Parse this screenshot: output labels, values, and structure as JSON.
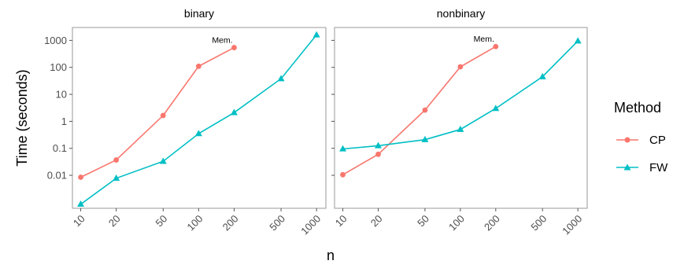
{
  "chart_data": {
    "type": "line",
    "ylabel": "Time (seconds)",
    "xlabel": "n",
    "x_scale": "log10",
    "y_scale": "log10",
    "x_ticks": [
      10,
      20,
      50,
      100,
      200,
      500,
      1000
    ],
    "x_tick_labels": [
      "10",
      "20",
      "50",
      "100",
      "200",
      "500",
      "1000"
    ],
    "y_ticks": [
      0.01,
      0.1,
      1,
      10,
      100,
      1000
    ],
    "y_tick_labels": [
      "0.01",
      "0.1",
      "1",
      "10",
      "100",
      "1000"
    ],
    "xlim": [
      8.5,
      1200
    ],
    "ylim": [
      0.0006,
      3000
    ],
    "legend": {
      "title": "Method",
      "placement": "right",
      "entries": [
        {
          "name": "CP",
          "color": "#F8766D",
          "marker": "circle"
        },
        {
          "name": "FW",
          "color": "#00BFC4",
          "marker": "triangle"
        }
      ]
    },
    "panels": [
      {
        "title": "binary",
        "series": [
          {
            "name": "CP",
            "x": [
              10,
              20,
              50,
              100,
              200
            ],
            "y": [
              0.0085,
              0.037,
              1.65,
              110,
              540
            ]
          },
          {
            "name": "FW",
            "x": [
              10,
              20,
              50,
              100,
              200,
              500,
              1000
            ],
            "y": [
              0.00085,
              0.0078,
              0.033,
              0.35,
              2.1,
              38,
              1600
            ]
          }
        ],
        "annotations": [
          {
            "text": "Mem.",
            "x": 200,
            "y": 540
          }
        ]
      },
      {
        "title": "nonbinary",
        "series": [
          {
            "name": "CP",
            "x": [
              10,
              20,
              50,
              100,
              200
            ],
            "y": [
              0.0105,
              0.06,
              2.6,
              105,
              590
            ]
          },
          {
            "name": "FW",
            "x": [
              10,
              20,
              50,
              100,
              200,
              500,
              1000
            ],
            "y": [
              0.095,
              0.125,
              0.21,
              0.5,
              3.0,
              45,
              950
            ]
          }
        ],
        "annotations": [
          {
            "text": "Mem.",
            "x": 200,
            "y": 590
          }
        ]
      }
    ]
  }
}
